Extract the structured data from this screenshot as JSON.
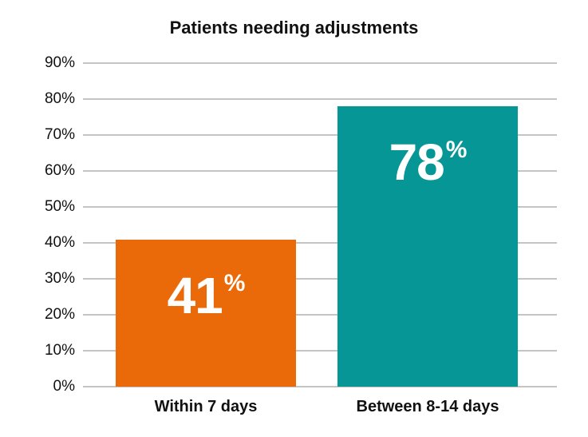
{
  "chart_data": {
    "type": "bar",
    "title": "Patients needing adjustments",
    "xlabel": "",
    "ylabel": "",
    "categories": [
      "Within 7 days",
      "Between 8-14 days"
    ],
    "values": [
      41,
      78
    ],
    "value_labels": [
      "41",
      "78"
    ],
    "value_suffix": "%",
    "colors": [
      "#EA6A0A",
      "#069696"
    ],
    "ylim": [
      0,
      90
    ],
    "yticks": [
      "0%",
      "10%",
      "20%",
      "30%",
      "40%",
      "50%",
      "60%",
      "70%",
      "80%",
      "90%"
    ],
    "grid": true,
    "legend": null
  }
}
